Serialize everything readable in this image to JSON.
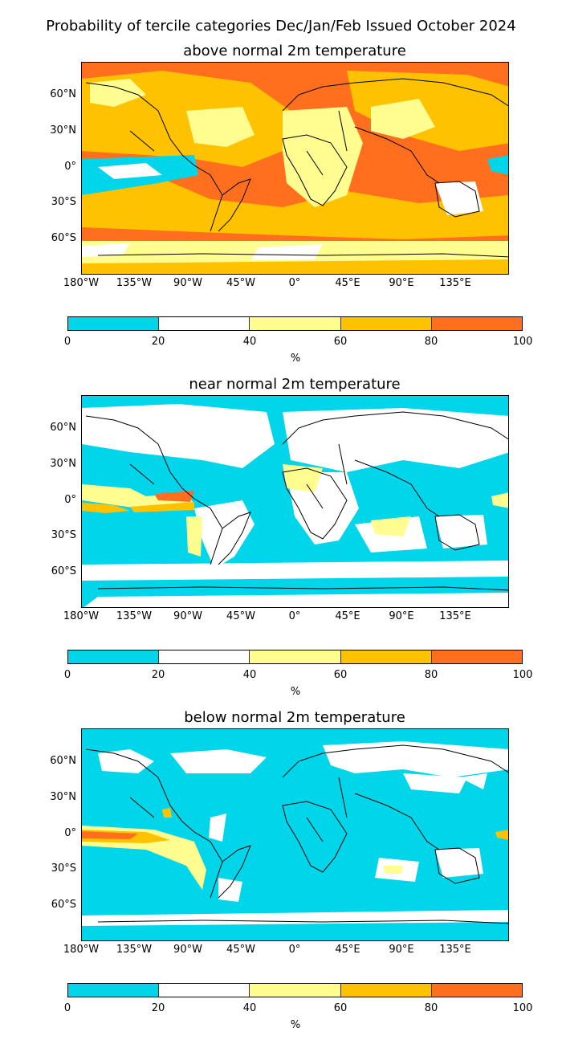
{
  "suptitle": "Probability of tercile categories Dec/Jan/Feb Issued October 2024",
  "colors": {
    "bin_0_20": "#00d5ea",
    "bin_20_40": "#ffffff",
    "bin_40_60": "#fffd8f",
    "bin_60_80": "#ffc200",
    "bin_80_100": "#ff6f1e",
    "coastline": "#000000"
  },
  "lat_ticks": [
    "60°N",
    "30°N",
    "0°",
    "30°S",
    "60°S"
  ],
  "lon_ticks": [
    "180°W",
    "135°W",
    "90°W",
    "45°W",
    "0°",
    "45°E",
    "90°E",
    "135°E"
  ],
  "colorbar": {
    "ticks": [
      "0",
      "20",
      "40",
      "60",
      "80",
      "100"
    ],
    "unit": "%"
  },
  "panels": [
    {
      "title": "above normal 2m temperature",
      "dominant_bin": "bin_60_80"
    },
    {
      "title": "near normal 2m temperature",
      "dominant_bin": "bin_0_20"
    },
    {
      "title": "below normal 2m temperature",
      "dominant_bin": "bin_0_20"
    }
  ]
}
